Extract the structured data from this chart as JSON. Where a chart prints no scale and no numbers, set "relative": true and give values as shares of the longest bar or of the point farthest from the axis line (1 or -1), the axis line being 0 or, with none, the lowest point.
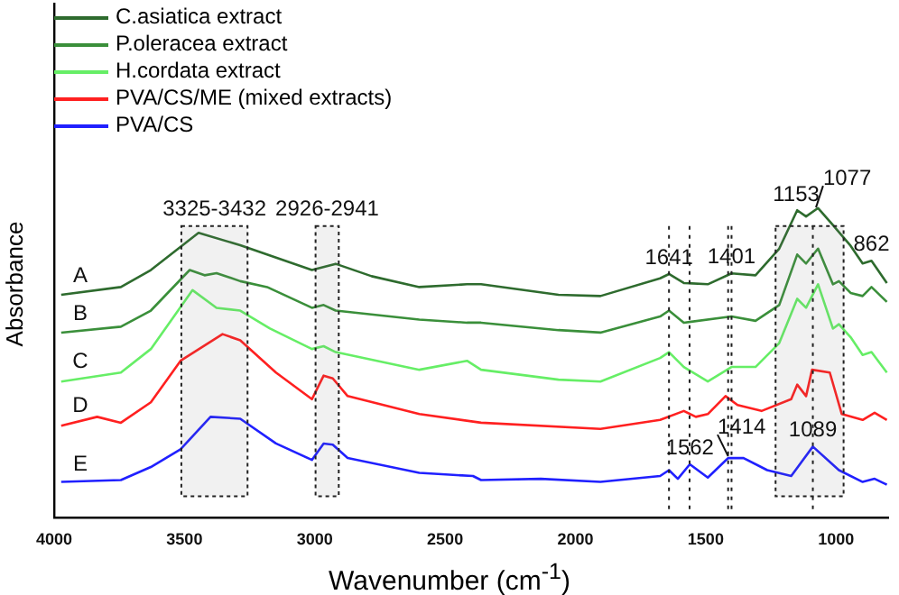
{
  "chart_data": {
    "type": "line",
    "relative": true,
    "xlabel": "Wavenumber (cm$^{-1}$)",
    "ylabel": "Absorbance",
    "xlim": [
      4000,
      800
    ],
    "xticks": [
      4000,
      3500,
      3000,
      2500,
      2000,
      1500,
      1000
    ],
    "legend": "top left",
    "grid": false,
    "marker": "none",
    "line_style": "solid",
    "series": [
      {
        "name": "C.asiatica extract",
        "color": "#2e6b2e",
        "x": [
          3973,
          3744,
          3629,
          3446,
          3286,
          3011,
          2920,
          2782,
          2599,
          2416,
          2362,
          2065,
          1904,
          1675,
          1641,
          1584,
          1492,
          1401,
          1309,
          1218,
          1149,
          1115,
          1069,
          1012,
          944,
          898,
          864,
          805
        ],
        "values": [
          0.72,
          0.745,
          0.8,
          0.92,
          0.88,
          0.8,
          0.82,
          0.78,
          0.745,
          0.754,
          0.754,
          0.72,
          0.716,
          0.773,
          0.787,
          0.758,
          0.754,
          0.789,
          0.783,
          0.869,
          0.993,
          0.973,
          1,
          0.945,
          0.878,
          0.821,
          0.83,
          0.758
        ]
      },
      {
        "name": "P.oleracea extract",
        "color": "#3a8f3a",
        "x": [
          3973,
          3744,
          3629,
          3480,
          3423,
          3377,
          3286,
          3183,
          3011,
          2966,
          2920,
          2599,
          2416,
          2362,
          2065,
          1904,
          1675,
          1641,
          1584,
          1401,
          1309,
          1218,
          1149,
          1115,
          1069,
          1012,
          989,
          944,
          898,
          864,
          805
        ],
        "values": [
          0.598,
          0.617,
          0.669,
          0.8,
          0.783,
          0.79,
          0.764,
          0.745,
          0.678,
          0.687,
          0.669,
          0.64,
          0.63,
          0.63,
          0.606,
          0.598,
          0.65,
          0.669,
          0.63,
          0.65,
          0.636,
          0.687,
          0.85,
          0.821,
          0.869,
          0.754,
          0.764,
          0.726,
          0.716,
          0.745,
          0.697
        ]
      },
      {
        "name": "H.cordata extract",
        "color": "#66ee66",
        "x": [
          3973,
          3744,
          3629,
          3469,
          3377,
          3286,
          3172,
          3011,
          2966,
          2920,
          2599,
          2416,
          2362,
          2065,
          1904,
          1675,
          1641,
          1584,
          1492,
          1401,
          1309,
          1218,
          1149,
          1115,
          1069,
          1012,
          989,
          944,
          898,
          864,
          805
        ],
        "values": [
          0.44,
          0.469,
          0.545,
          0.735,
          0.678,
          0.669,
          0.611,
          0.545,
          0.554,
          0.535,
          0.478,
          0.507,
          0.478,
          0.446,
          0.44,
          0.516,
          0.535,
          0.487,
          0.44,
          0.487,
          0.487,
          0.564,
          0.707,
          0.678,
          0.754,
          0.611,
          0.625,
          0.583,
          0.526,
          0.535,
          0.469
        ]
      },
      {
        "name": "PVA/CS/ME (mixed extracts)",
        "color": "#ff2020",
        "x": [
          3973,
          3835,
          3744,
          3629,
          3515,
          3354,
          3286,
          3149,
          3011,
          2966,
          2931,
          2874,
          2599,
          2362,
          1904,
          1675,
          1584,
          1538,
          1492,
          1424,
          1378,
          1286,
          1172,
          1149,
          1115,
          1092,
          1024,
          978,
          898,
          852,
          805
        ],
        "values": [
          0.297,
          0.326,
          0.307,
          0.373,
          0.507,
          0.593,
          0.573,
          0.469,
          0.383,
          0.459,
          0.45,
          0.393,
          0.335,
          0.307,
          0.287,
          0.316,
          0.345,
          0.326,
          0.335,
          0.393,
          0.364,
          0.345,
          0.383,
          0.43,
          0.393,
          0.478,
          0.469,
          0.335,
          0.316,
          0.339,
          0.316
        ]
      },
      {
        "name": "PVA/CS",
        "color": "#2020ff",
        "x": [
          3973,
          3744,
          3629,
          3515,
          3400,
          3286,
          3149,
          3011,
          2966,
          2931,
          2874,
          2599,
          2393,
          2362,
          2133,
          1904,
          1675,
          1641,
          1607,
          1561,
          1492,
          1414,
          1355,
          1264,
          1172,
          1089,
          989,
          898,
          852,
          805
        ],
        "values": [
          0.116,
          0.122,
          0.164,
          0.221,
          0.326,
          0.32,
          0.24,
          0.187,
          0.24,
          0.236,
          0.193,
          0.145,
          0.135,
          0.122,
          0.126,
          0.116,
          0.135,
          0.154,
          0.126,
          0.173,
          0.13,
          0.193,
          0.193,
          0.154,
          0.135,
          0.23,
          0.154,
          0.116,
          0.126,
          0.107
        ]
      }
    ],
    "bands": [
      {
        "axis": "x",
        "from": 3512,
        "to": 3258,
        "label": "3325-3432"
      },
      {
        "axis": "x",
        "from": 2997,
        "to": 2908,
        "label": "2926-2941"
      },
      {
        "axis": "x",
        "from": 1232,
        "to": 971
      }
    ],
    "ref_lines": [
      {
        "axis": "x",
        "value": 1641
      },
      {
        "axis": "x",
        "value": 1401
      },
      {
        "axis": "x",
        "value": 1562
      },
      {
        "axis": "x",
        "value": 1414
      },
      {
        "axis": "x",
        "value": 1089
      }
    ],
    "annotations": [
      {
        "text": "A",
        "x": 3900,
        "y": 0.727
      },
      {
        "text": "B",
        "x": 3900,
        "y": 0.604
      },
      {
        "text": "C",
        "x": 3900,
        "y": 0.45
      },
      {
        "text": "D",
        "x": 3900,
        "y": 0.309
      },
      {
        "text": "E",
        "x": 3900,
        "y": 0.118
      },
      {
        "text": "1641",
        "x": 1641,
        "y": 0.787
      },
      {
        "text": "1401",
        "x": 1401,
        "y": 0.789
      },
      {
        "text": "1153",
        "x": 1153,
        "y": 0.99
      },
      {
        "text": "1077",
        "x": 1077,
        "y": 0.996
      },
      {
        "text": "862",
        "x": 864,
        "y": 0.83
      },
      {
        "text": "1562",
        "x": 1561,
        "y": 0.173
      },
      {
        "text": "1414",
        "x": 1414,
        "y": 0.193
      },
      {
        "text": "1089",
        "x": 1089,
        "y": 0.23
      }
    ]
  }
}
